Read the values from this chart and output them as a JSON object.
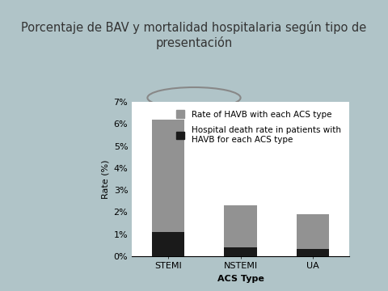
{
  "title_line1": "Porcentaje de BAV y mortalidad hospitalaria según tipo de",
  "title_line2": "presentación",
  "categories": [
    "STEMI",
    "NSTEMI",
    "UA"
  ],
  "havb_rates": [
    6.2,
    2.3,
    1.9
  ],
  "death_rates": [
    1.1,
    0.38,
    0.32
  ],
  "bar_color_gray": "#929292",
  "bar_color_black": "#1a1a1a",
  "ylabel": "Rate (%)",
  "xlabel": "ACS Type",
  "ylim": [
    0,
    7
  ],
  "yticks": [
    0,
    1,
    2,
    3,
    4,
    5,
    6,
    7
  ],
  "ytick_labels": [
    "0%",
    "1%",
    "2%",
    "3%",
    "4%",
    "5%",
    "6%",
    "7%"
  ],
  "legend_gray": "Rate of HAVB with each ACS type",
  "legend_black_1": "Hospital death rate in patients with",
  "legend_black_2": "HAVB for each ACS type",
  "bg_outer": "#b0c4c8",
  "bg_title": "#ffffff",
  "bg_chart_box": "#ffffff",
  "bg_plot_area": "#e8e8e8",
  "bar_width": 0.45,
  "title_fontsize": 10.5,
  "axis_fontsize": 8,
  "legend_fontsize": 7.5
}
